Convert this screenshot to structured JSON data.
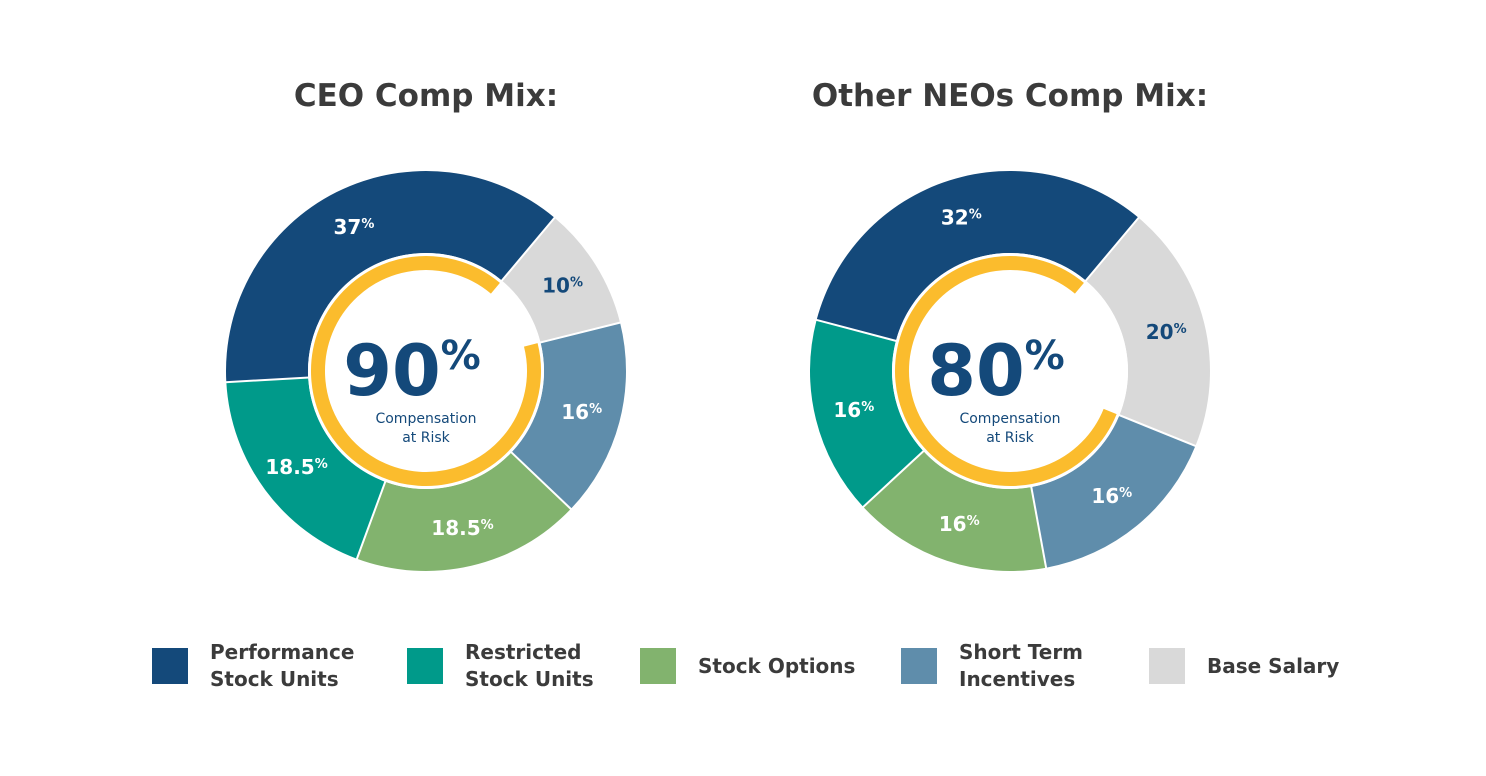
{
  "colors": {
    "performance_stock_units": "#14497a",
    "restricted_stock_units": "#009a8a",
    "stock_options": "#82b36e",
    "short_term_incentives": "#5f8dab",
    "base_salary": "#d9d9d9",
    "at_risk_ring": "#fbbc2d",
    "center_text": "#14497a"
  },
  "legend": [
    {
      "key": "performance_stock_units",
      "label": "Performance\nStock Units"
    },
    {
      "key": "restricted_stock_units",
      "label": "Restricted\nStock Units"
    },
    {
      "key": "stock_options",
      "label": "Stock Options"
    },
    {
      "key": "short_term_incentives",
      "label": "Short Term\nIncentives"
    },
    {
      "key": "base_salary",
      "label": "Base Salary"
    }
  ],
  "chart_data": [
    {
      "type": "pie",
      "title": "CEO Comp Mix:",
      "center_value": "90",
      "center_unit": "%",
      "center_label_line1": "Compensation",
      "center_label_line2": "at Risk",
      "at_risk_percent": 90,
      "slices": [
        {
          "key": "base_salary",
          "value": 10,
          "label": "10",
          "unit": "%",
          "label_color": "#14497a"
        },
        {
          "key": "short_term_incentives",
          "value": 16,
          "label": "16",
          "unit": "%",
          "label_color": "#ffffff"
        },
        {
          "key": "stock_options",
          "value": 18.5,
          "label": "18.5",
          "unit": "%",
          "label_color": "#ffffff"
        },
        {
          "key": "restricted_stock_units",
          "value": 18.5,
          "label": "18.5",
          "unit": "%",
          "label_color": "#ffffff"
        },
        {
          "key": "performance_stock_units",
          "value": 37,
          "label": "37",
          "unit": "%",
          "label_color": "#ffffff"
        }
      ]
    },
    {
      "type": "pie",
      "title": "Other NEOs Comp Mix:",
      "center_value": "80",
      "center_unit": "%",
      "center_label_line1": "Compensation",
      "center_label_line2": "at Risk",
      "at_risk_percent": 80,
      "slices": [
        {
          "key": "base_salary",
          "value": 20,
          "label": "20",
          "unit": "%",
          "label_color": "#14497a"
        },
        {
          "key": "short_term_incentives",
          "value": 16,
          "label": "16",
          "unit": "%",
          "label_color": "#ffffff"
        },
        {
          "key": "stock_options",
          "value": 16,
          "label": "16",
          "unit": "%",
          "label_color": "#ffffff"
        },
        {
          "key": "restricted_stock_units",
          "value": 16,
          "label": "16",
          "unit": "%",
          "label_color": "#ffffff"
        },
        {
          "key": "performance_stock_units",
          "value": 32,
          "label": "32",
          "unit": "%",
          "label_color": "#ffffff"
        }
      ]
    }
  ]
}
